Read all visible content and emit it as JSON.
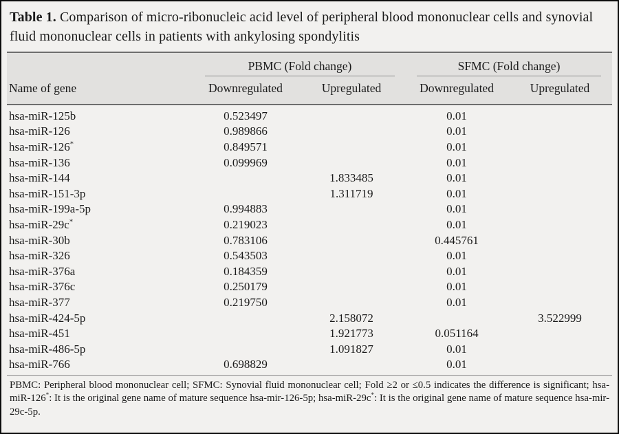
{
  "title": {
    "segments": [
      {
        "text": "Table 1.",
        "bold": true
      },
      {
        "text": " Comparison of micro-ribonucleic acid level of peripheral blood mononuclear cells and synovial fluid mononuclear cells in patients with ankylosing spondylitis"
      }
    ]
  },
  "table": {
    "gene_column_header": "Name of gene",
    "groups": [
      {
        "label": "PBMC (Fold change)"
      },
      {
        "label": "SFMC (Fold change)"
      }
    ],
    "sub_headers": [
      "Downregulated",
      "Upregulated",
      "Downregulated",
      "Upregulated"
    ],
    "rows": [
      {
        "gene": "hsa-miR-125b",
        "pbmc_down": "0.523497",
        "pbmc_up": "",
        "sfmc_down": "0.01",
        "sfmc_up": ""
      },
      {
        "gene": "hsa-miR-126",
        "pbmc_down": "0.989866",
        "pbmc_up": "",
        "sfmc_down": "0.01",
        "sfmc_up": ""
      },
      {
        "gene": "hsa-miR-126*",
        "pbmc_down": "0.849571",
        "pbmc_up": "",
        "sfmc_down": "0.01",
        "sfmc_up": ""
      },
      {
        "gene": "hsa-miR-136",
        "pbmc_down": "0.099969",
        "pbmc_up": "",
        "sfmc_down": "0.01",
        "sfmc_up": ""
      },
      {
        "gene": "hsa-miR-144",
        "pbmc_down": "",
        "pbmc_up": "1.833485",
        "sfmc_down": "0.01",
        "sfmc_up": ""
      },
      {
        "gene": "hsa-miR-151-3p",
        "pbmc_down": "",
        "pbmc_up": "1.311719",
        "sfmc_down": "0.01",
        "sfmc_up": ""
      },
      {
        "gene": "hsa-miR-199a-5p",
        "pbmc_down": "0.994883",
        "pbmc_up": "",
        "sfmc_down": "0.01",
        "sfmc_up": ""
      },
      {
        "gene": "hsa-miR-29c*",
        "pbmc_down": "0.219023",
        "pbmc_up": "",
        "sfmc_down": "0.01",
        "sfmc_up": ""
      },
      {
        "gene": "hsa-miR-30b",
        "pbmc_down": "0.783106",
        "pbmc_up": "",
        "sfmc_down": "0.445761",
        "sfmc_up": ""
      },
      {
        "gene": "hsa-miR-326",
        "pbmc_down": "0.543503",
        "pbmc_up": "",
        "sfmc_down": "0.01",
        "sfmc_up": ""
      },
      {
        "gene": "hsa-miR-376a",
        "pbmc_down": "0.184359",
        "pbmc_up": "",
        "sfmc_down": "0.01",
        "sfmc_up": ""
      },
      {
        "gene": "hsa-miR-376c",
        "pbmc_down": "0.250179",
        "pbmc_up": "",
        "sfmc_down": "0.01",
        "sfmc_up": ""
      },
      {
        "gene": "hsa-miR-377",
        "pbmc_down": "0.219750",
        "pbmc_up": "",
        "sfmc_down": "0.01",
        "sfmc_up": ""
      },
      {
        "gene": "hsa-miR-424-5p",
        "pbmc_down": "",
        "pbmc_up": "2.158072",
        "sfmc_down": "",
        "sfmc_up": "3.522999"
      },
      {
        "gene": "hsa-miR-451",
        "pbmc_down": "",
        "pbmc_up": "1.921773",
        "sfmc_down": "0.051164",
        "sfmc_up": ""
      },
      {
        "gene": "hsa-miR-486-5p",
        "pbmc_down": "",
        "pbmc_up": "1.091827",
        "sfmc_down": "0.01",
        "sfmc_up": ""
      },
      {
        "gene": "hsa-miR-766",
        "pbmc_down": "0.698829",
        "pbmc_up": "",
        "sfmc_down": "0.01",
        "sfmc_up": ""
      }
    ]
  },
  "footnote": {
    "segments": [
      {
        "text": "PBMC: Peripheral blood mononuclear cell; SFMC: Synovial fluid mononuclear cell; Fold ≥2 or ≤0.5 indicates the difference is significant; hsa-miR-126"
      },
      {
        "text": "*",
        "sup": true
      },
      {
        "text": ": It is the original gene name of mature sequence hsa-mir-126-5p; hsa-miR-29c"
      },
      {
        "text": "*",
        "sup": true
      },
      {
        "text": ": It is the original gene name of mature sequence hsa-mir-29c-5p."
      }
    ]
  },
  "colors": {
    "body_background": "#f2f1ef",
    "header_band": "#e2e1df",
    "rule": "#6e6e6e",
    "text": "#1b1b1b",
    "frame_border": "#0c0c0c"
  }
}
